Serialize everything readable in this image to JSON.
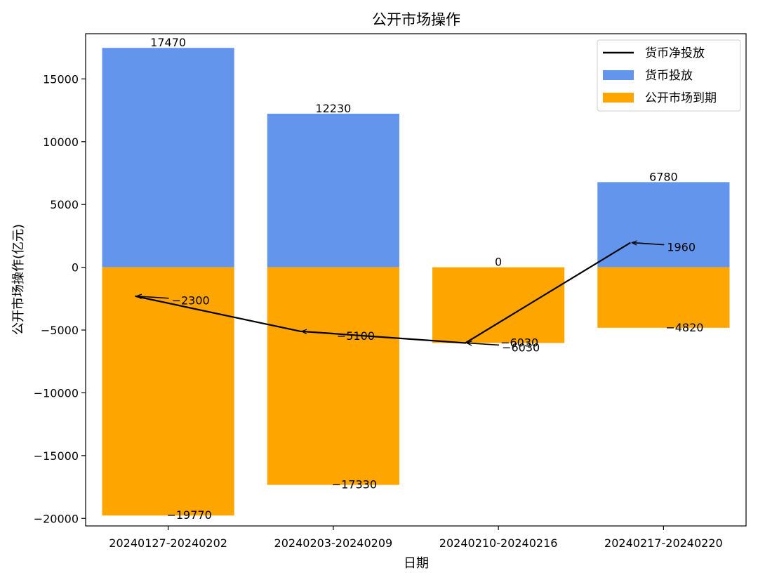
{
  "chart_data": {
    "type": "bar",
    "title": "公开市场操作",
    "xlabel": "日期",
    "ylabel": "公开市场操作(亿元)",
    "categories": [
      "20240127-20240202",
      "20240203-20240209",
      "20240210-20240216",
      "20240217-20240220"
    ],
    "series": [
      {
        "name": "货币投放",
        "kind": "bar",
        "color": "#6495ED",
        "values": [
          17470,
          12230,
          0,
          6780
        ]
      },
      {
        "name": "公开市场到期",
        "kind": "bar",
        "color": "#FFA500",
        "values": [
          -19770,
          -17330,
          -6030,
          -4820
        ]
      },
      {
        "name": "货币净投放",
        "kind": "line",
        "color": "#000000",
        "values": [
          -2300,
          -5100,
          -6030,
          1960
        ]
      }
    ],
    "ylim": [
      -20600,
      18600
    ],
    "yticks": [
      -20000,
      -15000,
      -10000,
      -5000,
      0,
      5000,
      10000,
      15000
    ],
    "grid": false,
    "legend": "top-right"
  }
}
